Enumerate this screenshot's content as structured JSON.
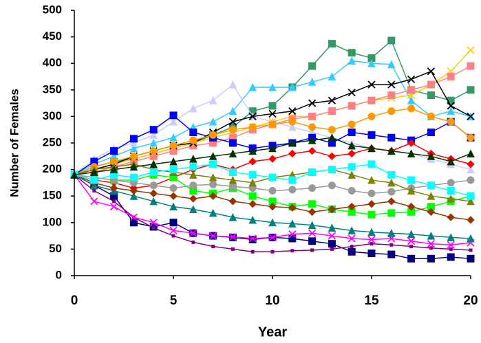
{
  "chart_data": {
    "type": "line",
    "x_label": "Year",
    "y_label": "Number of Females",
    "x": [
      0,
      1,
      2,
      3,
      4,
      5,
      6,
      7,
      8,
      9,
      10,
      11,
      12,
      13,
      14,
      15,
      16,
      17,
      18,
      19,
      20
    ],
    "xlim": [
      0,
      20
    ],
    "xticks": [
      0,
      5,
      10,
      15,
      20
    ],
    "ylim": [
      0,
      500
    ],
    "yticks": [
      0,
      50,
      100,
      150,
      200,
      250,
      300,
      350,
      400,
      450,
      500
    ],
    "grid": false,
    "series": [
      {
        "color": "#339966",
        "marker": "square",
        "values": [
          190,
          205,
          215,
          220,
          230,
          240,
          250,
          265,
          280,
          310,
          320,
          355,
          395,
          437,
          420,
          410,
          443,
          350,
          340,
          330,
          350
        ]
      },
      {
        "color": "#33ccff",
        "marker": "triangle",
        "values": [
          190,
          210,
          225,
          240,
          250,
          260,
          280,
          290,
          310,
          355,
          355,
          355,
          365,
          375,
          405,
          400,
          398,
          330,
          300,
          310,
          300
        ]
      },
      {
        "color": "#000080",
        "marker": "square",
        "values": [
          190,
          170,
          150,
          100,
          92,
          100,
          80,
          75,
          72,
          68,
          72,
          70,
          65,
          60,
          45,
          42,
          40,
          32,
          32,
          35,
          32
        ]
      },
      {
        "color": "#800080",
        "marker": "dot",
        "values": [
          190,
          160,
          140,
          110,
          90,
          75,
          63,
          55,
          50,
          45,
          45,
          47,
          48,
          50,
          55,
          60,
          58,
          55,
          52,
          50,
          48
        ]
      },
      {
        "color": "#ffcc00",
        "marker": "x",
        "values": [
          190,
          200,
          210,
          220,
          230,
          240,
          250,
          260,
          270,
          280,
          290,
          300,
          300,
          310,
          320,
          330,
          335,
          340,
          360,
          385,
          425
        ]
      },
      {
        "color": "#ff8080",
        "marker": "square",
        "values": [
          190,
          195,
          205,
          215,
          225,
          235,
          245,
          250,
          260,
          275,
          285,
          295,
          300,
          310,
          320,
          330,
          340,
          350,
          360,
          375,
          395
        ]
      },
      {
        "color": "#ccccff",
        "marker": "triangle",
        "values": [
          190,
          220,
          240,
          250,
          265,
          290,
          315,
          330,
          360,
          300,
          290,
          280,
          270,
          260,
          250,
          240,
          235,
          230,
          220,
          210,
          200
        ]
      },
      {
        "color": "#0000ff",
        "marker": "square",
        "values": [
          190,
          215,
          235,
          258,
          275,
          302,
          270,
          260,
          250,
          240,
          245,
          250,
          260,
          250,
          270,
          265,
          260,
          255,
          270,
          290,
          260
        ]
      },
      {
        "color": "#000000",
        "marker": "x",
        "values": [
          190,
          200,
          210,
          225,
          235,
          245,
          250,
          270,
          290,
          300,
          305,
          310,
          325,
          330,
          345,
          360,
          360,
          370,
          385,
          320,
          300
        ]
      },
      {
        "color": "#ff0000",
        "marker": "diamond",
        "values": [
          190,
          180,
          175,
          165,
          170,
          185,
          200,
          210,
          200,
          215,
          220,
          230,
          235,
          225,
          230,
          240,
          235,
          250,
          230,
          220,
          210
        ]
      },
      {
        "color": "#ff9900",
        "marker": "circle",
        "values": [
          190,
          205,
          215,
          225,
          235,
          245,
          255,
          265,
          275,
          280,
          285,
          290,
          280,
          275,
          285,
          300,
          310,
          315,
          300,
          290,
          260
        ]
      },
      {
        "color": "#00ff00",
        "marker": "square",
        "values": [
          190,
          185,
          180,
          180,
          190,
          185,
          160,
          155,
          165,
          150,
          140,
          130,
          135,
          125,
          120,
          115,
          118,
          120,
          130,
          140,
          150
        ]
      },
      {
        "color": "#ff00ff",
        "marker": "x",
        "values": [
          190,
          140,
          130,
          110,
          100,
          85,
          80,
          75,
          73,
          70,
          72,
          78,
          80,
          75,
          70,
          68,
          70,
          65,
          60,
          58,
          62
        ]
      },
      {
        "color": "#008080",
        "marker": "triangle",
        "values": [
          190,
          170,
          160,
          150,
          140,
          130,
          125,
          118,
          110,
          105,
          100,
          98,
          95,
          90,
          85,
          82,
          80,
          78,
          75,
          72,
          70
        ]
      },
      {
        "color": "#993300",
        "marker": "diamond",
        "values": [
          190,
          175,
          165,
          160,
          155,
          150,
          145,
          150,
          140,
          135,
          130,
          128,
          120,
          125,
          130,
          135,
          140,
          130,
          120,
          110,
          105
        ]
      },
      {
        "color": "#999999",
        "marker": "circle",
        "values": [
          190,
          185,
          180,
          175,
          170,
          165,
          170,
          172,
          168,
          165,
          160,
          162,
          165,
          170,
          160,
          155,
          158,
          165,
          170,
          175,
          180
        ]
      },
      {
        "color": "#808000",
        "marker": "triangle",
        "values": [
          190,
          200,
          205,
          210,
          200,
          195,
          190,
          185,
          180,
          175,
          185,
          190,
          195,
          200,
          190,
          180,
          175,
          160,
          150,
          145,
          140
        ]
      },
      {
        "color": "#00ffff",
        "marker": "square",
        "values": [
          190,
          180,
          190,
          185,
          195,
          200,
          205,
          210,
          195,
          190,
          185,
          180,
          195,
          200,
          205,
          210,
          190,
          180,
          170,
          160,
          150
        ]
      },
      {
        "color": "#003300",
        "marker": "triangle",
        "values": [
          190,
          195,
          200,
          205,
          210,
          215,
          220,
          225,
          230,
          235,
          240,
          250,
          255,
          260,
          245,
          240,
          235,
          230,
          225,
          215,
          230
        ]
      }
    ]
  }
}
